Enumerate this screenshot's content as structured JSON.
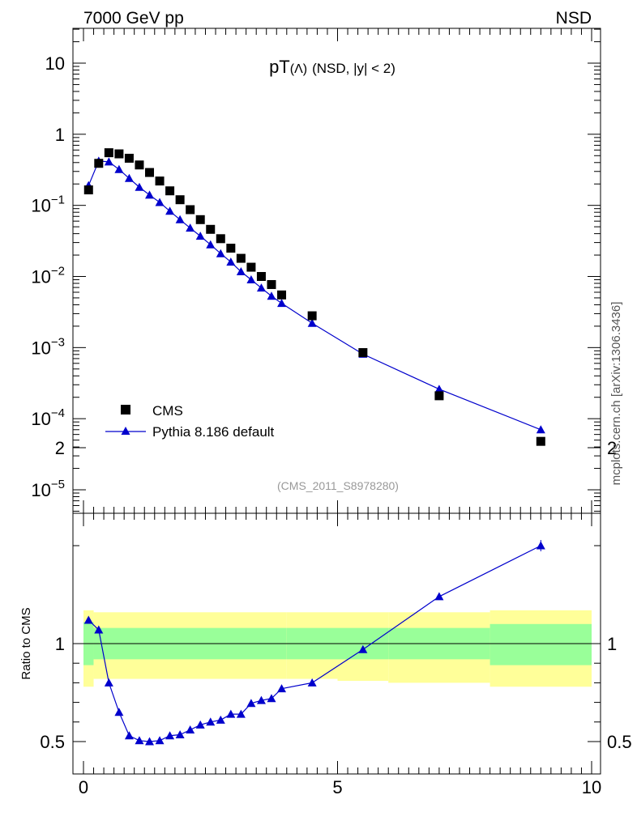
{
  "header": {
    "left": "7000 GeV pp",
    "right": "NSD"
  },
  "side_label": "mcplots.cern.ch [arXiv:1306.3436]",
  "chart_data": [
    {
      "type": "scatter",
      "title_main": "pT",
      "title_particle": "(Λ)",
      "title_cut": "(NSD, |y| < 2)",
      "watermark": "(CMS_2011_S8978280)",
      "yscale": "log",
      "xlim": [
        -0.2,
        10.0
      ],
      "ylim": [
        5e-06,
        30
      ],
      "yticks": [
        1e-05,
        0.0001,
        0.001,
        0.01,
        0.1,
        1,
        10
      ],
      "ytick_labels": [
        {
          "base": "10",
          "exp": "−5"
        },
        {
          "base": "10",
          "exp": "−4"
        },
        {
          "base": "10",
          "exp": "−3"
        },
        {
          "base": "10",
          "exp": "−2"
        },
        {
          "base": "10",
          "exp": "−1"
        },
        {
          "base": "1",
          "exp": ""
        },
        {
          "base": "10",
          "exp": ""
        }
      ],
      "legend_position": "bottom-left",
      "series": [
        {
          "name": "CMS",
          "marker": "square",
          "color": "#000000",
          "x": [
            0.1,
            0.3,
            0.5,
            0.7,
            0.9,
            1.1,
            1.3,
            1.5,
            1.7,
            1.9,
            2.1,
            2.3,
            2.5,
            2.7,
            2.9,
            3.1,
            3.3,
            3.5,
            3.7,
            3.9,
            4.5,
            5.5,
            7.0,
            9.0
          ],
          "y": [
            0.165,
            0.39,
            0.55,
            0.53,
            0.46,
            0.37,
            0.29,
            0.22,
            0.16,
            0.12,
            0.087,
            0.063,
            0.046,
            0.034,
            0.025,
            0.018,
            0.0135,
            0.01,
            0.0077,
            0.0055,
            0.0028,
            0.00085,
            0.00021,
            4.8e-05
          ]
        },
        {
          "name": "Pythia 8.186 default",
          "marker": "triangle",
          "color": "#0000cc",
          "x": [
            0.1,
            0.3,
            0.5,
            0.7,
            0.9,
            1.1,
            1.3,
            1.5,
            1.7,
            1.9,
            2.1,
            2.3,
            2.5,
            2.7,
            2.9,
            3.1,
            3.3,
            3.5,
            3.7,
            3.9,
            4.5,
            5.5,
            7.0,
            9.0
          ],
          "y": [
            0.19,
            0.42,
            0.41,
            0.32,
            0.24,
            0.18,
            0.14,
            0.11,
            0.083,
            0.063,
            0.048,
            0.037,
            0.028,
            0.021,
            0.016,
            0.0117,
            0.009,
            0.0069,
            0.0053,
            0.0042,
            0.0022,
            0.00081,
            0.00026,
            7e-05
          ]
        }
      ]
    },
    {
      "type": "line",
      "ylabel": "Ratio to CMS",
      "xlim": [
        -0.2,
        10.0
      ],
      "ylim": [
        0.33,
        2.33
      ],
      "yticks": [
        0.5,
        1,
        2
      ],
      "ytick_labels": [
        "0.5",
        "1",
        "2"
      ],
      "xticks": [
        0,
        5,
        10
      ],
      "xtick_labels": [
        "0",
        "5",
        "10"
      ],
      "reference_line": 1.0,
      "bands": [
        {
          "x0": 0.0,
          "x1": 0.2,
          "inner": [
            0.89,
            1.11
          ],
          "outer": [
            0.78,
            1.17
          ]
        },
        {
          "x0": 0.2,
          "x1": 4.0,
          "inner": [
            0.92,
            1.08
          ],
          "outer": [
            0.82,
            1.16
          ]
        },
        {
          "x0": 4.0,
          "x1": 5.0,
          "inner": [
            0.92,
            1.08
          ],
          "outer": [
            0.82,
            1.16
          ]
        },
        {
          "x0": 5.0,
          "x1": 6.0,
          "inner": [
            0.92,
            1.08
          ],
          "outer": [
            0.81,
            1.16
          ]
        },
        {
          "x0": 6.0,
          "x1": 8.0,
          "inner": [
            0.92,
            1.08
          ],
          "outer": [
            0.8,
            1.16
          ]
        },
        {
          "x0": 8.0,
          "x1": 10.0,
          "inner": [
            0.89,
            1.1
          ],
          "outer": [
            0.78,
            1.17
          ]
        }
      ],
      "inner_color": "#99ff99",
      "outer_color": "#ffff99",
      "series": [
        {
          "name": "Pythia 8.186 default",
          "color": "#0000cc",
          "x": [
            0.1,
            0.3,
            0.5,
            0.7,
            0.9,
            1.1,
            1.3,
            1.5,
            1.7,
            1.9,
            2.1,
            2.3,
            2.5,
            2.7,
            2.9,
            3.1,
            3.3,
            3.5,
            3.7,
            3.9,
            4.5,
            5.5,
            7.0,
            9.0
          ],
          "y": [
            1.12,
            1.07,
            0.8,
            0.65,
            0.53,
            0.505,
            0.5,
            0.505,
            0.53,
            0.535,
            0.56,
            0.585,
            0.6,
            0.61,
            0.64,
            0.64,
            0.695,
            0.71,
            0.72,
            0.77,
            0.8,
            0.97,
            1.24,
            1.5
          ]
        }
      ]
    }
  ]
}
